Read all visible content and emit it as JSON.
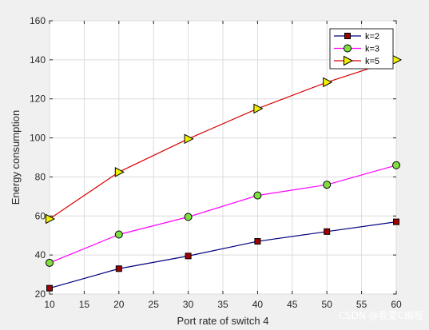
{
  "chart_data": {
    "type": "line",
    "x": [
      10,
      20,
      30,
      40,
      50,
      60
    ],
    "series": [
      {
        "name": "k=2",
        "values": [
          23,
          33,
          39.5,
          47,
          52,
          57
        ],
        "color": "#00007f",
        "marker": "square",
        "marker_fill": "#a00000"
      },
      {
        "name": "k=3",
        "values": [
          36,
          50.5,
          59.5,
          70.5,
          76,
          86
        ],
        "color": "#ff00ff",
        "marker": "circle",
        "marker_fill": "#7fdf40"
      },
      {
        "name": "k=5",
        "values": [
          58.5,
          82.5,
          99.5,
          115,
          128.5,
          140
        ],
        "color": "#d90000",
        "marker": "triangle-right",
        "marker_fill": "#f0f000"
      }
    ],
    "title": "",
    "xlabel": "Port rate of switch 4",
    "ylabel": "Energy consumption",
    "xlim": [
      10,
      60
    ],
    "ylim": [
      20,
      160
    ],
    "xticks": [
      "10",
      "15",
      "20",
      "25",
      "30",
      "35",
      "40",
      "45",
      "50",
      "55",
      "60"
    ],
    "yticks": [
      "20",
      "40",
      "60",
      "80",
      "100",
      "120",
      "140",
      "160"
    ],
    "grid": true,
    "legend_position": "top-right"
  },
  "watermark": "CSDN @我爱C编程"
}
